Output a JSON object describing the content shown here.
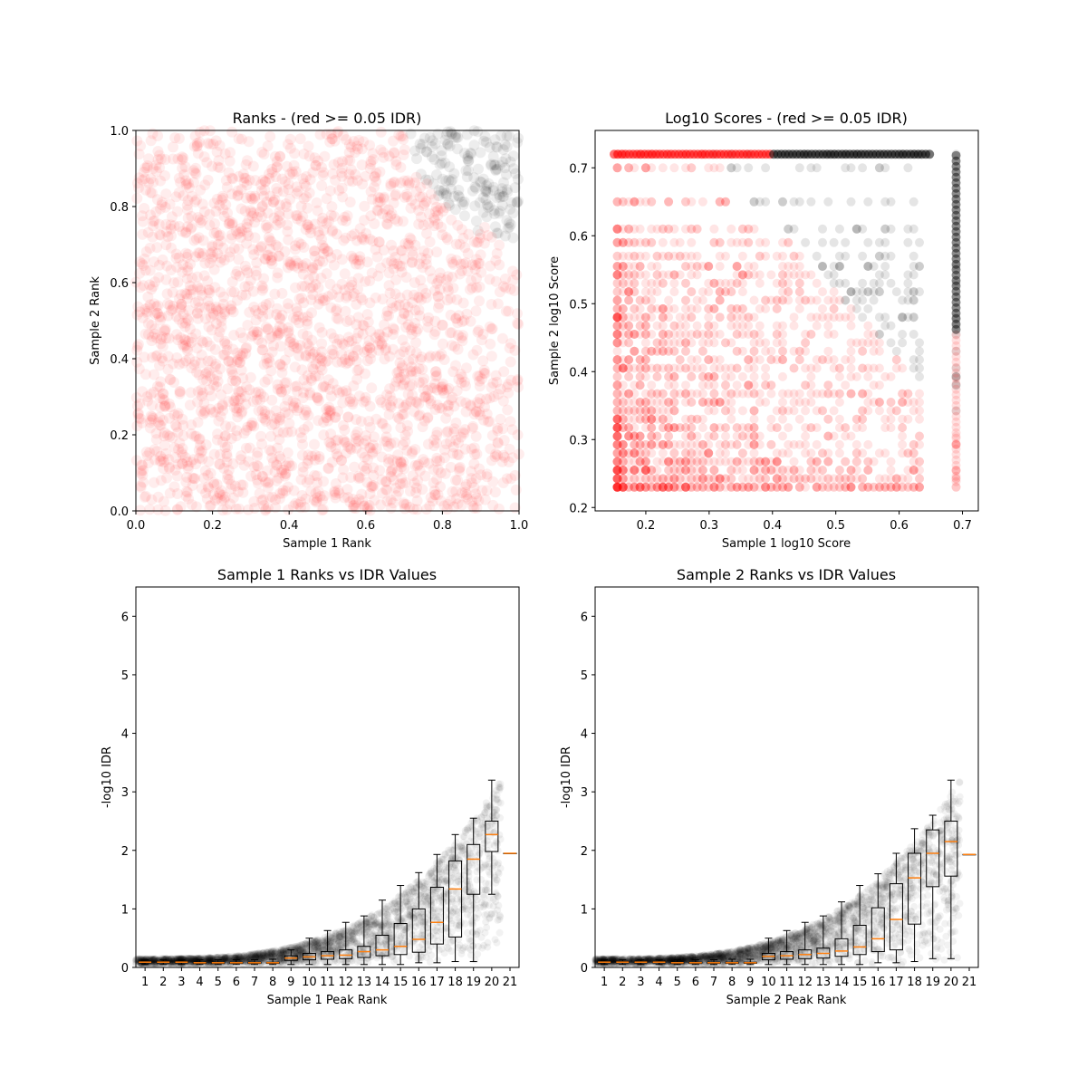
{
  "chart_data": [
    {
      "type": "scatter",
      "title": "Ranks - (red >= 0.05 IDR)",
      "xlabel": "Sample 1 Rank",
      "ylabel": "Sample 2 Rank",
      "xlim": [
        0,
        1
      ],
      "ylim": [
        0,
        1
      ],
      "xticks": [
        "0.0",
        "0.2",
        "0.4",
        "0.6",
        "0.8",
        "1.0"
      ],
      "yticks": [
        "0.0",
        "0.2",
        "0.4",
        "0.6",
        "0.8",
        "1.0"
      ],
      "colors": {
        "idr_fail": "#ff0000",
        "idr_pass": "#000000"
      },
      "threshold_curve": {
        "center": [
          1.0,
          1.0
        ],
        "radius": 0.28
      }
    },
    {
      "type": "scatter",
      "title": "Log10 Scores - (red >= 0.05 IDR)",
      "xlabel": "Sample 1 log10 Score",
      "ylabel": "Sample 2 log10 Score",
      "xlim": [
        0.12,
        0.725
      ],
      "ylim": [
        0.195,
        0.755
      ],
      "xticks": [
        "0.2",
        "0.3",
        "0.4",
        "0.5",
        "0.6",
        "0.7"
      ],
      "yticks": [
        "0.2",
        "0.3",
        "0.4",
        "0.5",
        "0.6",
        "0.7"
      ],
      "colors": {
        "idr_fail": "#ff0000",
        "idr_pass": "#000000"
      },
      "score_range": {
        "x": [
          0.15,
          0.69
        ],
        "y": [
          0.225,
          0.72
        ]
      }
    },
    {
      "type": "box",
      "title": "Sample 1 Ranks vs IDR Values",
      "xlabel": "Sample 1 Peak Rank",
      "ylabel": "-log10 IDR",
      "ylim": [
        0,
        6.5
      ],
      "yticks": [
        "0",
        "1",
        "2",
        "3",
        "4",
        "5",
        "6"
      ],
      "categories": [
        "1",
        "2",
        "3",
        "4",
        "5",
        "6",
        "7",
        "8",
        "9",
        "10",
        "11",
        "12",
        "13",
        "14",
        "15",
        "16",
        "17",
        "18",
        "19",
        "20",
        "21"
      ],
      "medians": [
        0.09,
        0.09,
        0.09,
        0.08,
        0.08,
        0.08,
        0.08,
        0.08,
        0.16,
        0.18,
        0.2,
        0.21,
        0.27,
        0.3,
        0.36,
        0.48,
        0.77,
        1.34,
        1.85,
        2.27,
        1.95
      ],
      "q1": [
        0.08,
        0.08,
        0.08,
        0.07,
        0.07,
        0.07,
        0.07,
        0.07,
        0.12,
        0.13,
        0.14,
        0.15,
        0.17,
        0.2,
        0.22,
        0.26,
        0.4,
        0.52,
        1.25,
        1.98,
        1.95
      ],
      "q3": [
        0.1,
        0.1,
        0.1,
        0.09,
        0.09,
        0.09,
        0.09,
        0.09,
        0.2,
        0.24,
        0.27,
        0.3,
        0.36,
        0.55,
        0.75,
        1.0,
        1.37,
        1.82,
        2.1,
        2.5,
        1.95
      ],
      "whisker_low": [
        0.05,
        0.05,
        0.05,
        0.05,
        0.05,
        0.05,
        0.05,
        0.05,
        0.05,
        0.05,
        0.05,
        0.05,
        0.05,
        0.05,
        0.05,
        0.08,
        0.08,
        0.1,
        0.1,
        1.25,
        1.95
      ],
      "whisker_high": [
        0.13,
        0.13,
        0.13,
        0.13,
        0.13,
        0.13,
        0.13,
        0.14,
        0.3,
        0.5,
        0.63,
        0.77,
        0.88,
        1.15,
        1.4,
        1.62,
        1.93,
        2.27,
        2.55,
        3.2,
        1.95
      ],
      "colors": {
        "median": "#ff7f0e",
        "box": "#000000",
        "points": "#000000"
      }
    },
    {
      "type": "box",
      "title": "Sample 2 Ranks vs IDR Values",
      "xlabel": "Sample 2 Peak Rank",
      "ylabel": "-log10 IDR",
      "ylim": [
        0,
        6.5
      ],
      "yticks": [
        "0",
        "1",
        "2",
        "3",
        "4",
        "5",
        "6"
      ],
      "categories": [
        "1",
        "2",
        "3",
        "4",
        "5",
        "6",
        "7",
        "8",
        "9",
        "10",
        "11",
        "12",
        "13",
        "14",
        "15",
        "16",
        "17",
        "18",
        "19",
        "20",
        "21"
      ],
      "medians": [
        0.09,
        0.09,
        0.09,
        0.09,
        0.08,
        0.08,
        0.08,
        0.08,
        0.08,
        0.19,
        0.2,
        0.22,
        0.24,
        0.28,
        0.35,
        0.49,
        0.82,
        1.53,
        1.95,
        2.15,
        1.93
      ],
      "q1": [
        0.08,
        0.08,
        0.08,
        0.08,
        0.07,
        0.07,
        0.07,
        0.07,
        0.07,
        0.13,
        0.14,
        0.15,
        0.16,
        0.19,
        0.22,
        0.27,
        0.3,
        0.74,
        1.38,
        1.56,
        1.93
      ],
      "q3": [
        0.1,
        0.1,
        0.1,
        0.1,
        0.09,
        0.09,
        0.09,
        0.09,
        0.09,
        0.24,
        0.27,
        0.3,
        0.33,
        0.49,
        0.72,
        1.02,
        1.43,
        1.95,
        2.35,
        2.5,
        1.93
      ],
      "whisker_low": [
        0.05,
        0.05,
        0.05,
        0.05,
        0.05,
        0.05,
        0.05,
        0.05,
        0.05,
        0.05,
        0.05,
        0.05,
        0.05,
        0.05,
        0.05,
        0.08,
        0.08,
        0.1,
        0.15,
        0.15,
        1.93
      ],
      "whisker_high": [
        0.13,
        0.13,
        0.13,
        0.13,
        0.13,
        0.13,
        0.13,
        0.14,
        0.14,
        0.5,
        0.63,
        0.77,
        0.88,
        1.12,
        1.4,
        1.6,
        1.95,
        2.37,
        2.6,
        3.2,
        1.93
      ],
      "colors": {
        "median": "#ff7f0e",
        "box": "#000000",
        "points": "#000000"
      }
    }
  ]
}
